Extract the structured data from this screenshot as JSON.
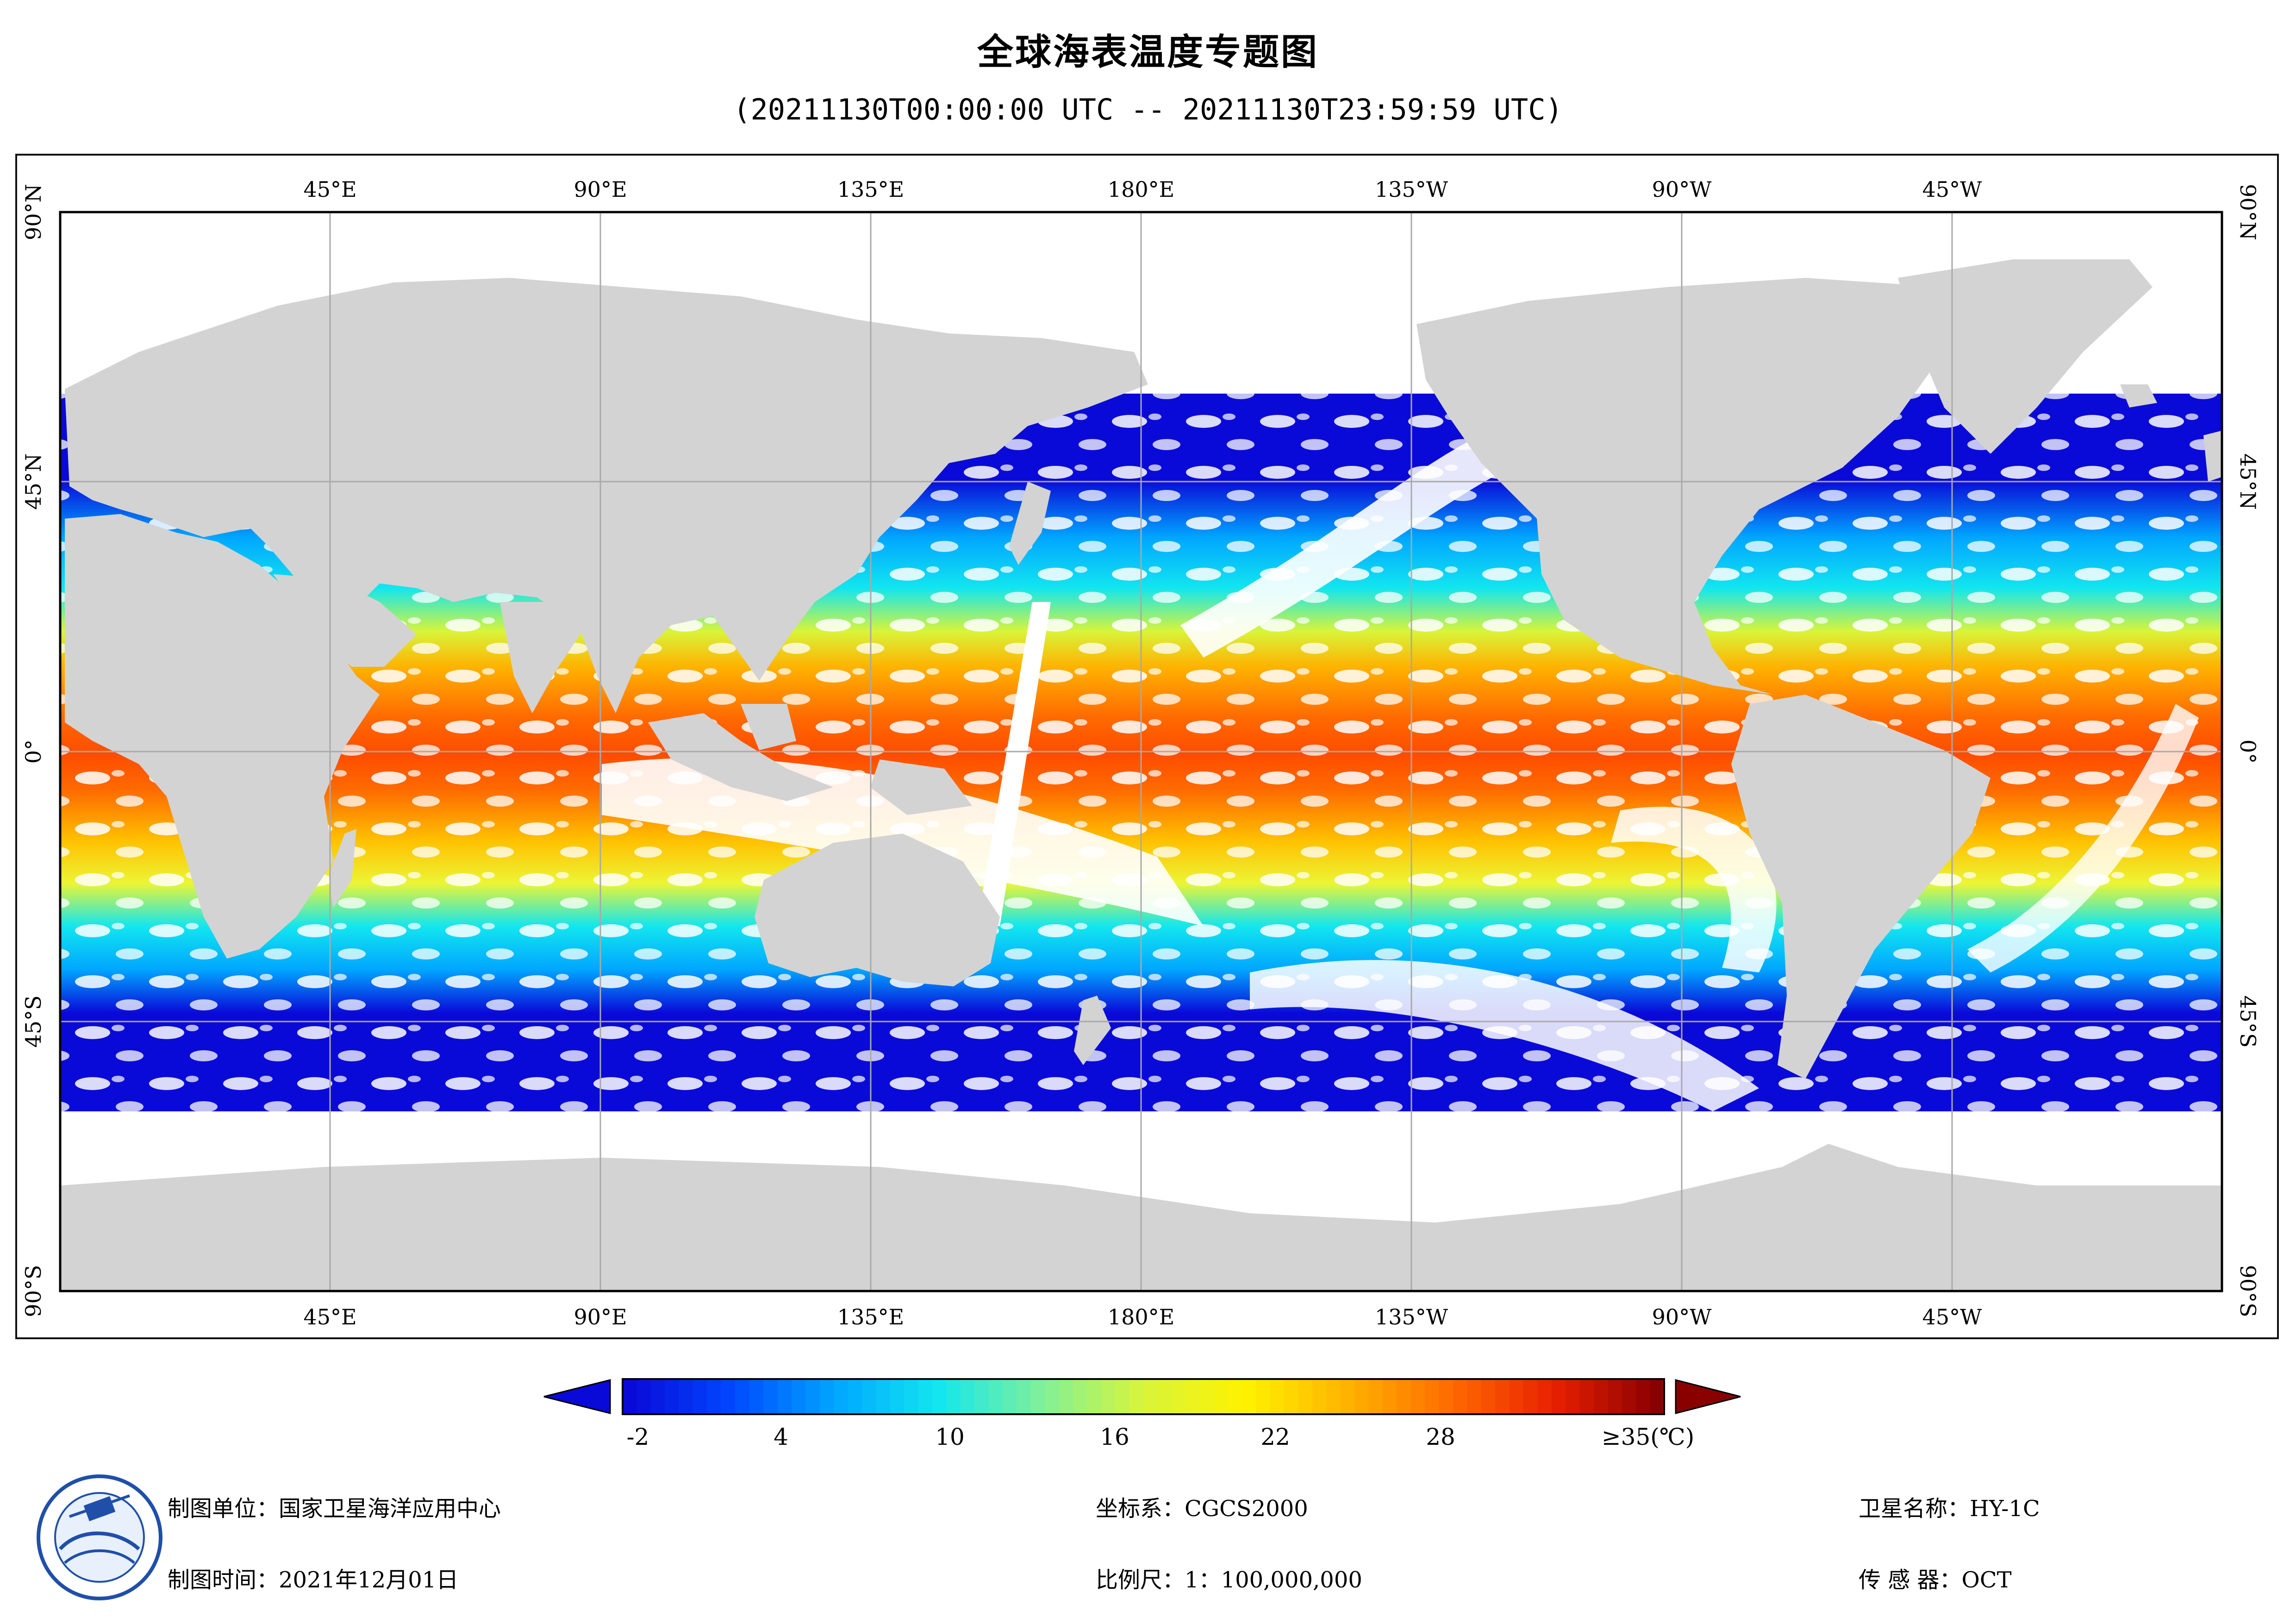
{
  "title": "全球海表温度专题图",
  "subtitle": "(20211130T00:00:00 UTC -- 20211130T23:59:59 UTC)",
  "map": {
    "projection": "plate-carree",
    "lon_ticks_top": [
      "45°E",
      "90°E",
      "135°E",
      "180°E",
      "135°W",
      "90°W",
      "45°W"
    ],
    "lon_ticks_bottom": [
      "45°E",
      "90°E",
      "135°E",
      "180°E",
      "135°W",
      "90°W",
      "45°W"
    ],
    "lat_ticks": [
      "90°N",
      "45°N",
      "0°",
      "45°S",
      "90°S"
    ],
    "land_color": "#d3d3d3",
    "cloud_color": "#ffffff",
    "gridline_color": "#a9a9a9"
  },
  "colorbar": {
    "tick_labels": [
      "-2",
      "4",
      "10",
      "16",
      "22",
      "28",
      "≥35(℃)"
    ],
    "min": -2,
    "max": 35,
    "unit": "℃",
    "colors": [
      "#0a0ad8",
      "#0048ff",
      "#00a6ff",
      "#12e6ef",
      "#7ff09a",
      "#d8f53a",
      "#fff200",
      "#ffb200",
      "#ff6a00",
      "#e82000",
      "#8a0000"
    ]
  },
  "footer": {
    "org_label": "制图单位：国家卫星海洋应用中心",
    "time_label": "制图时间：2021年12月01日",
    "crs_label": "坐标系：CGCS2000",
    "scale_label": "比例尺：1：100,000,000",
    "satellite_label": "卫星名称：HY-1C",
    "sensor_label": "传 感 器：OCT"
  }
}
